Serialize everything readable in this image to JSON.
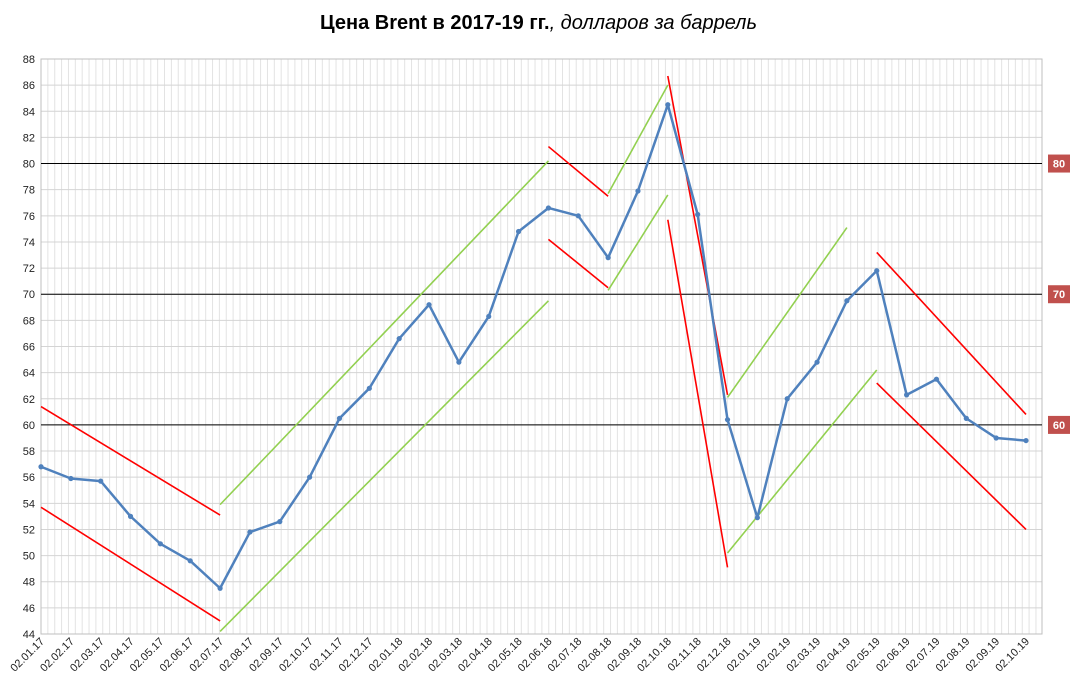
{
  "chart_data": {
    "type": "line",
    "title": "Цена Brent в 2017-19 гг.",
    "title_suffix": ", долларов за баррель",
    "xlabel": "",
    "ylabel": "",
    "ylim": [
      44,
      88
    ],
    "y_ticks": [
      44,
      46,
      48,
      50,
      52,
      54,
      56,
      58,
      60,
      62,
      64,
      66,
      68,
      70,
      72,
      74,
      76,
      78,
      80,
      82,
      84,
      86,
      88
    ],
    "x_tick_labels": [
      "02.01.17",
      "02.02.17",
      "02.03.17",
      "02.04.17",
      "02.05.17",
      "02.06.17",
      "02.07.17",
      "02.08.17",
      "02.09.17",
      "02.10.17",
      "02.11.17",
      "02.12.17",
      "02.01.18",
      "02.02.18",
      "02.03.18",
      "02.04.18",
      "02.05.18",
      "02.06.18",
      "02.07.18",
      "02.08.18",
      "02.09.18",
      "02.10.18",
      "02.11.18",
      "02.12.18",
      "02.01.19",
      "02.02.19",
      "02.03.19",
      "02.04.19",
      "02.05.19",
      "02.06.19",
      "02.07.19",
      "02.08.19",
      "02.09.19",
      "02.10.19"
    ],
    "grid": true,
    "series_color": "#4f81bd",
    "series": [
      {
        "x": [
          "02.01.17",
          "02.02.17",
          "02.03.17",
          "02.04.17",
          "02.05.17",
          "02.06.17",
          "02.07.17",
          "02.08.17",
          "02.09.17",
          "02.10.17",
          "02.11.17",
          "02.12.17",
          "02.01.18",
          "02.02.18",
          "02.03.18",
          "02.04.18",
          "02.05.18",
          "02.06.18",
          "02.07.18",
          "02.08.18",
          "02.09.18",
          "02.10.18",
          "02.11.18",
          "02.12.18",
          "02.01.19",
          "02.02.19",
          "02.03.19",
          "02.04.19",
          "02.05.19",
          "02.06.19",
          "02.07.19",
          "02.08.19",
          "02.09.19",
          "02.10.19"
        ],
        "values": [
          56.8,
          55.9,
          55.7,
          53.0,
          50.9,
          49.6,
          47.5,
          51.8,
          52.6,
          56.0,
          60.5,
          62.8,
          66.6,
          69.2,
          64.8,
          68.3,
          74.8,
          76.6,
          76.0,
          72.8,
          77.9,
          84.5,
          76.1,
          60.4,
          52.9,
          62.0,
          64.8,
          69.5,
          71.8,
          62.3,
          63.5,
          60.5,
          59.0,
          58.8
        ]
      }
    ],
    "horizontal_levels": [
      {
        "value": 80,
        "label": "80"
      },
      {
        "value": 70,
        "label": "70"
      },
      {
        "value": 60,
        "label": "60"
      }
    ],
    "level_label_color": "#c0504d",
    "trend_colors": {
      "down": "#ff0000",
      "up": "#92d050"
    },
    "trend_lines": [
      {
        "kind": "down",
        "from": [
          "02.01.17",
          61.4
        ],
        "to": [
          "02.07.17",
          53.1
        ]
      },
      {
        "kind": "down",
        "from": [
          "02.01.17",
          53.7
        ],
        "to": [
          "02.07.17",
          45.0
        ]
      },
      {
        "kind": "up",
        "from": [
          "02.07.17",
          53.9
        ],
        "to": [
          "02.06.18",
          80.2
        ]
      },
      {
        "kind": "up",
        "from": [
          "02.07.17",
          44.2
        ],
        "to": [
          "02.06.18",
          69.5
        ]
      },
      {
        "kind": "down",
        "from": [
          "02.06.18",
          81.3
        ],
        "to": [
          "02.08.18",
          77.5
        ]
      },
      {
        "kind": "down",
        "from": [
          "02.06.18",
          74.2
        ],
        "to": [
          "02.08.18",
          70.5
        ]
      },
      {
        "kind": "up",
        "from": [
          "02.08.18",
          77.7
        ],
        "to": [
          "02.10.18",
          86.0
        ]
      },
      {
        "kind": "up",
        "from": [
          "02.08.18",
          70.3
        ],
        "to": [
          "02.10.18",
          77.6
        ]
      },
      {
        "kind": "down",
        "from": [
          "02.10.18",
          86.7
        ],
        "to": [
          "02.12.18",
          62.3
        ]
      },
      {
        "kind": "down",
        "from": [
          "02.10.18",
          75.7
        ],
        "to": [
          "02.12.18",
          49.1
        ]
      },
      {
        "kind": "up",
        "from": [
          "02.12.18",
          62.1
        ],
        "to": [
          "02.04.19",
          75.1
        ]
      },
      {
        "kind": "up",
        "from": [
          "02.12.18",
          50.2
        ],
        "to": [
          "02.05.19",
          64.2
        ]
      },
      {
        "kind": "down",
        "from": [
          "02.05.19",
          73.2
        ],
        "to": [
          "02.10.19",
          60.8
        ]
      },
      {
        "kind": "down",
        "from": [
          "02.05.19",
          63.2
        ],
        "to": [
          "02.10.19",
          52.0
        ]
      }
    ]
  }
}
